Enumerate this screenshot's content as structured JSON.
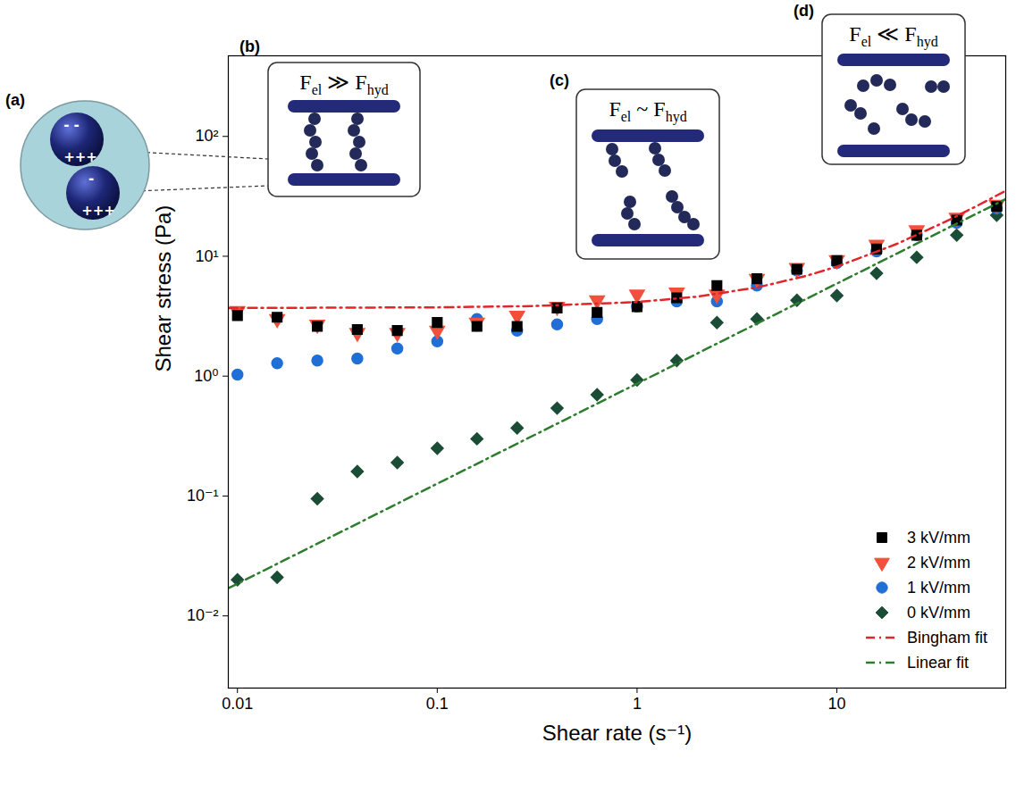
{
  "chart_data": {
    "type": "scatter",
    "xlabel": "Shear rate (s⁻¹)",
    "ylabel": "Shear stress (Pa)",
    "log": true,
    "grid": false,
    "legend": "lower right",
    "xlim": [
      0.009,
      70
    ],
    "ylim": [
      0.0025,
      470
    ],
    "xticks": [
      0.01,
      0.1,
      1,
      10
    ],
    "yticks": [
      {
        "value": 0.01,
        "label": "10⁻²"
      },
      {
        "value": 0.1,
        "label": "10⁻¹"
      },
      {
        "value": 1,
        "label": "10⁰"
      },
      {
        "value": 10,
        "label": "10¹"
      },
      {
        "value": 100,
        "label": "10²"
      }
    ],
    "x": [
      0.01,
      0.0158,
      0.0251,
      0.0398,
      0.0631,
      0.1,
      0.158,
      0.251,
      0.398,
      0.631,
      1,
      1.58,
      2.51,
      3.98,
      6.31,
      10,
      15.8,
      25.1,
      39.8,
      63.1
    ],
    "series": [
      {
        "name": "3 kV/mm",
        "color": "#000000",
        "marker": "square",
        "values": [
          3.2,
          3.1,
          2.6,
          2.45,
          2.4,
          2.8,
          2.6,
          2.6,
          3.7,
          3.4,
          3.8,
          4.5,
          5.7,
          6.5,
          7.8,
          9.2,
          11.5,
          15,
          20,
          26
        ]
      },
      {
        "name": "2 kV/mm",
        "color": "#f0503c",
        "marker": "triangle_down",
        "values": [
          3.5,
          3.0,
          2.7,
          2.3,
          2.3,
          2.4,
          2.8,
          3.2,
          3.8,
          4.3,
          4.8,
          5.0,
          4.8,
          6.5,
          8.0,
          9.3,
          12.5,
          16.5,
          21,
          27
        ]
      },
      {
        "name": "1 kV/mm",
        "color": "#1f6fd6",
        "marker": "circle",
        "values": [
          1.03,
          1.28,
          1.35,
          1.4,
          1.7,
          1.95,
          3.0,
          2.4,
          2.7,
          3.0,
          3.8,
          4.2,
          4.2,
          5.7,
          7.6,
          8.8,
          11,
          15,
          19,
          25
        ]
      },
      {
        "name": "0 kV/mm",
        "color": "#1b4d36",
        "marker": "diamond",
        "values": [
          0.02,
          0.021,
          0.095,
          0.16,
          0.19,
          0.25,
          0.3,
          0.37,
          0.54,
          0.7,
          0.93,
          1.35,
          2.8,
          3.0,
          4.3,
          4.7,
          7.2,
          9.8,
          15,
          22
        ]
      },
      {
        "name": "Bingham fit",
        "type": "line",
        "color": "#e0262b",
        "line_style": "dashdot",
        "x": [
          0.009,
          0.1,
          0.3,
          1,
          2,
          4,
          7,
          10,
          20,
          35,
          50,
          70
        ],
        "values": [
          3.7,
          3.75,
          3.84,
          4.15,
          4.6,
          5.5,
          6.85,
          8.2,
          12.7,
          19.45,
          26.2,
          35.2
        ]
      },
      {
        "name": "Linear fit",
        "type": "line",
        "color": "#2e7d2e",
        "line_style": "dashdot",
        "x": [
          0.009,
          70
        ],
        "values": [
          0.017,
          30
        ]
      }
    ],
    "annotations": [
      {
        "letter": "(a)",
        "charges": [
          "- -",
          "+++",
          "-",
          "+++"
        ]
      },
      {
        "letter": "(b)",
        "text": [
          {
            "text": "F"
          },
          {
            "text": "el",
            "sub": true
          },
          {
            "text": " ≫ "
          },
          {
            "text": "F"
          },
          {
            "text": "hyd",
            "sub": true
          }
        ]
      },
      {
        "letter": "(c)",
        "text": [
          {
            "text": "F"
          },
          {
            "text": "el",
            "sub": true
          },
          {
            "text": " ~ "
          },
          {
            "text": "F"
          },
          {
            "text": "hyd",
            "sub": true
          }
        ]
      },
      {
        "letter": "(d)",
        "text": [
          {
            "text": "F"
          },
          {
            "text": "el",
            "sub": true
          },
          {
            "text": " ≪ "
          },
          {
            "text": "F"
          },
          {
            "text": "hyd",
            "sub": true
          }
        ]
      }
    ]
  }
}
